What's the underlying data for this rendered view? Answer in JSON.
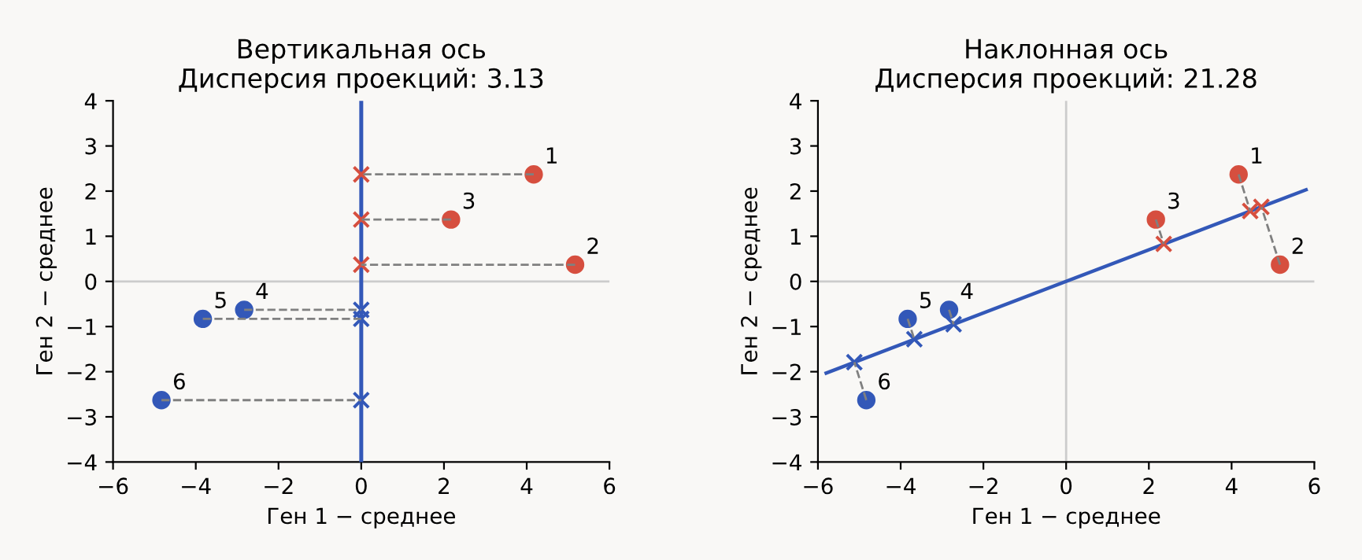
{
  "chart_data": [
    {
      "type": "scatter",
      "title": "Вертикальная ось\nДисперсия проекций: 3.13",
      "xlabel": "Ген 1 − среднее",
      "ylabel": "Ген 2 − среднее",
      "xlim": [
        -6,
        6
      ],
      "ylim": [
        -4,
        4
      ],
      "xticks": [
        -6,
        -4,
        -2,
        0,
        2,
        4,
        6
      ],
      "yticks": [
        -4,
        -3,
        -2,
        -1,
        0,
        1,
        2,
        3,
        4
      ],
      "grid": false,
      "legend": false,
      "ref_lines": [
        {
          "axis": "y",
          "value": 0,
          "color": "#cccccc"
        },
        {
          "axis": "x",
          "value": 0,
          "color": "#3358b8"
        }
      ],
      "series": [
        {
          "type": "line",
          "x": [
            4.17,
            0
          ],
          "values": [
            2.37,
            2.37
          ],
          "color": "#808080",
          "line_style": "dashed",
          "marker": "none"
        },
        {
          "type": "line",
          "x": [
            5.17,
            0
          ],
          "values": [
            0.37,
            0.37
          ],
          "color": "#808080",
          "line_style": "dashed",
          "marker": "none"
        },
        {
          "type": "line",
          "x": [
            2.17,
            0
          ],
          "values": [
            1.37,
            1.37
          ],
          "color": "#808080",
          "line_style": "dashed",
          "marker": "none"
        },
        {
          "type": "line",
          "x": [
            -2.83,
            0
          ],
          "values": [
            -0.63,
            -0.63
          ],
          "color": "#808080",
          "line_style": "dashed",
          "marker": "none"
        },
        {
          "type": "line",
          "x": [
            -3.83,
            0
          ],
          "values": [
            -0.83,
            -0.83
          ],
          "color": "#808080",
          "line_style": "dashed",
          "marker": "none"
        },
        {
          "type": "line",
          "x": [
            -4.83,
            0
          ],
          "values": [
            -2.63,
            -2.63
          ],
          "color": "#808080",
          "line_style": "dashed",
          "marker": "none"
        },
        {
          "x": [
            0,
            0,
            0
          ],
          "values": [
            2.37,
            0.37,
            1.37
          ],
          "color": "#d64f3f",
          "marker": "cross"
        },
        {
          "x": [
            0,
            0,
            0
          ],
          "values": [
            -0.63,
            -0.83,
            -2.63
          ],
          "color": "#3358b8",
          "marker": "cross"
        },
        {
          "x": [
            4.17,
            5.17,
            2.17
          ],
          "values": [
            2.37,
            0.37,
            1.37
          ],
          "color": "#d64f3f",
          "marker": "circle"
        },
        {
          "x": [
            -2.83,
            -3.83,
            -4.83
          ],
          "values": [
            -0.63,
            -0.83,
            -2.63
          ],
          "color": "#3358b8",
          "marker": "circle"
        }
      ],
      "annotations": [
        {
          "text": "1",
          "x": 4.17,
          "y": 2.37
        },
        {
          "text": "2",
          "x": 5.17,
          "y": 0.37
        },
        {
          "text": "3",
          "x": 2.17,
          "y": 1.37
        },
        {
          "text": "4",
          "x": -2.83,
          "y": -0.63
        },
        {
          "text": "5",
          "x": -3.83,
          "y": -0.83
        },
        {
          "text": "6",
          "x": -4.83,
          "y": -2.63
        }
      ]
    },
    {
      "type": "scatter",
      "title": "Наклонная ось\nДисперсия проекций: 21.28",
      "xlabel": "Ген 1 − среднее",
      "ylabel": "Ген 2 − среднее",
      "xlim": [
        -6,
        6
      ],
      "ylim": [
        -4,
        4
      ],
      "xticks": [
        -6,
        -4,
        -2,
        0,
        2,
        4,
        6
      ],
      "yticks": [
        -4,
        -3,
        -2,
        -1,
        0,
        1,
        2,
        3,
        4
      ],
      "grid": false,
      "legend": false,
      "ref_lines": [
        {
          "axis": "y",
          "value": 0,
          "color": "#cccccc"
        },
        {
          "axis": "x",
          "value": 0,
          "color": "#cccccc"
        }
      ],
      "series": [
        {
          "type": "line",
          "x": [
            -5.8,
            5.8
          ],
          "values": [
            -2.03,
            2.03
          ],
          "color": "#3358b8",
          "line_style": "solid",
          "marker": "none"
        },
        {
          "type": "line",
          "x": [
            4.17,
            4.45
          ],
          "values": [
            2.37,
            1.56
          ],
          "color": "#808080",
          "line_style": "dashed",
          "marker": "none"
        },
        {
          "type": "line",
          "x": [
            5.17,
            4.72
          ],
          "values": [
            0.37,
            1.65
          ],
          "color": "#808080",
          "line_style": "dashed",
          "marker": "none"
        },
        {
          "type": "line",
          "x": [
            2.17,
            2.36
          ],
          "values": [
            1.37,
            0.83
          ],
          "color": "#808080",
          "line_style": "dashed",
          "marker": "none"
        },
        {
          "type": "line",
          "x": [
            -2.83,
            -2.72
          ],
          "values": [
            -0.63,
            -0.95
          ],
          "color": "#808080",
          "line_style": "dashed",
          "marker": "none"
        },
        {
          "type": "line",
          "x": [
            -3.83,
            -3.67
          ],
          "values": [
            -0.83,
            -1.28
          ],
          "color": "#808080",
          "line_style": "dashed",
          "marker": "none"
        },
        {
          "type": "line",
          "x": [
            -4.83,
            -5.12
          ],
          "values": [
            -2.63,
            -1.79
          ],
          "color": "#808080",
          "line_style": "dashed",
          "marker": "none"
        },
        {
          "x": [
            4.45,
            4.72,
            2.36
          ],
          "values": [
            1.56,
            1.65,
            0.83
          ],
          "color": "#d64f3f",
          "marker": "cross"
        },
        {
          "x": [
            -2.72,
            -3.67,
            -5.12
          ],
          "values": [
            -0.95,
            -1.28,
            -1.79
          ],
          "color": "#3358b8",
          "marker": "cross"
        },
        {
          "x": [
            4.17,
            5.17,
            2.17
          ],
          "values": [
            2.37,
            0.37,
            1.37
          ],
          "color": "#d64f3f",
          "marker": "circle"
        },
        {
          "x": [
            -2.83,
            -3.83,
            -4.83
          ],
          "values": [
            -0.63,
            -0.83,
            -2.63
          ],
          "color": "#3358b8",
          "marker": "circle"
        }
      ],
      "annotations": [
        {
          "text": "1",
          "x": 4.17,
          "y": 2.37
        },
        {
          "text": "2",
          "x": 5.17,
          "y": 0.37
        },
        {
          "text": "3",
          "x": 2.17,
          "y": 1.37
        },
        {
          "text": "4",
          "x": -2.83,
          "y": -0.63
        },
        {
          "text": "5",
          "x": -3.83,
          "y": -0.83
        },
        {
          "text": "6",
          "x": -4.83,
          "y": -2.63
        }
      ]
    }
  ]
}
